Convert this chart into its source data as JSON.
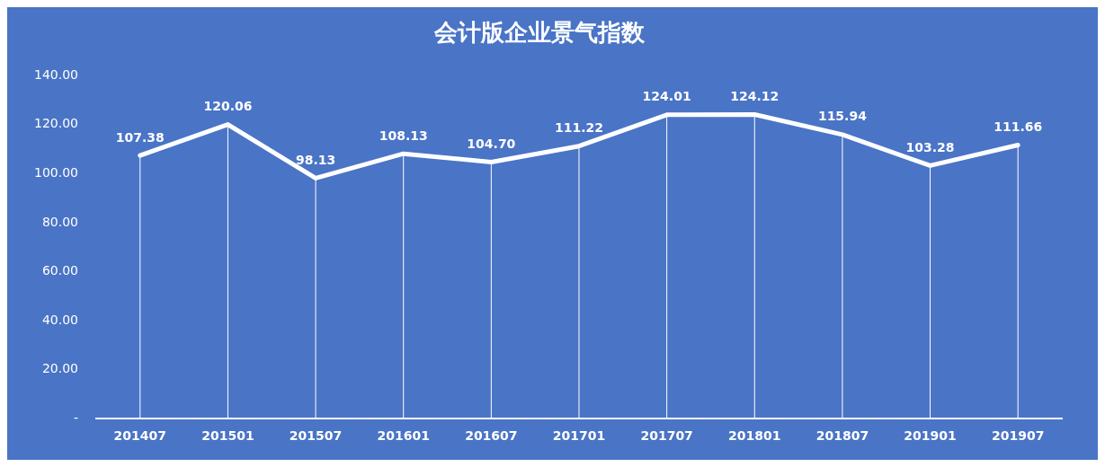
{
  "chart_data": {
    "type": "line",
    "title": "会计版企业景气指数",
    "categories": [
      "201407",
      "201501",
      "201507",
      "201601",
      "201607",
      "201701",
      "201707",
      "201801",
      "201807",
      "201901",
      "201907"
    ],
    "series": [
      {
        "color": "#ffffff",
        "values": [
          107.38,
          120.06,
          98.13,
          108.13,
          104.7,
          111.22,
          124.01,
          124.12,
          115.94,
          103.28,
          111.66
        ],
        "value_labels": [
          "107.38",
          "120.06",
          "98.13",
          "108.13",
          "104.70",
          "111.22",
          "124.01",
          "124.12",
          "115.94",
          "103.28",
          "111.66"
        ]
      }
    ],
    "ylim": [
      0,
      140
    ],
    "yticks": [
      {
        "value": 0,
        "label": "-"
      },
      {
        "value": 20,
        "label": "20.00"
      },
      {
        "value": 40,
        "label": "40.00"
      },
      {
        "value": 60,
        "label": "60.00"
      },
      {
        "value": 80,
        "label": "80.00"
      },
      {
        "value": 100,
        "label": "100.00"
      },
      {
        "value": 120,
        "label": "120.00"
      },
      {
        "value": 140,
        "label": "140.00"
      }
    ],
    "grid": "x",
    "legend": false,
    "marker": "none",
    "line_style": "solid"
  }
}
